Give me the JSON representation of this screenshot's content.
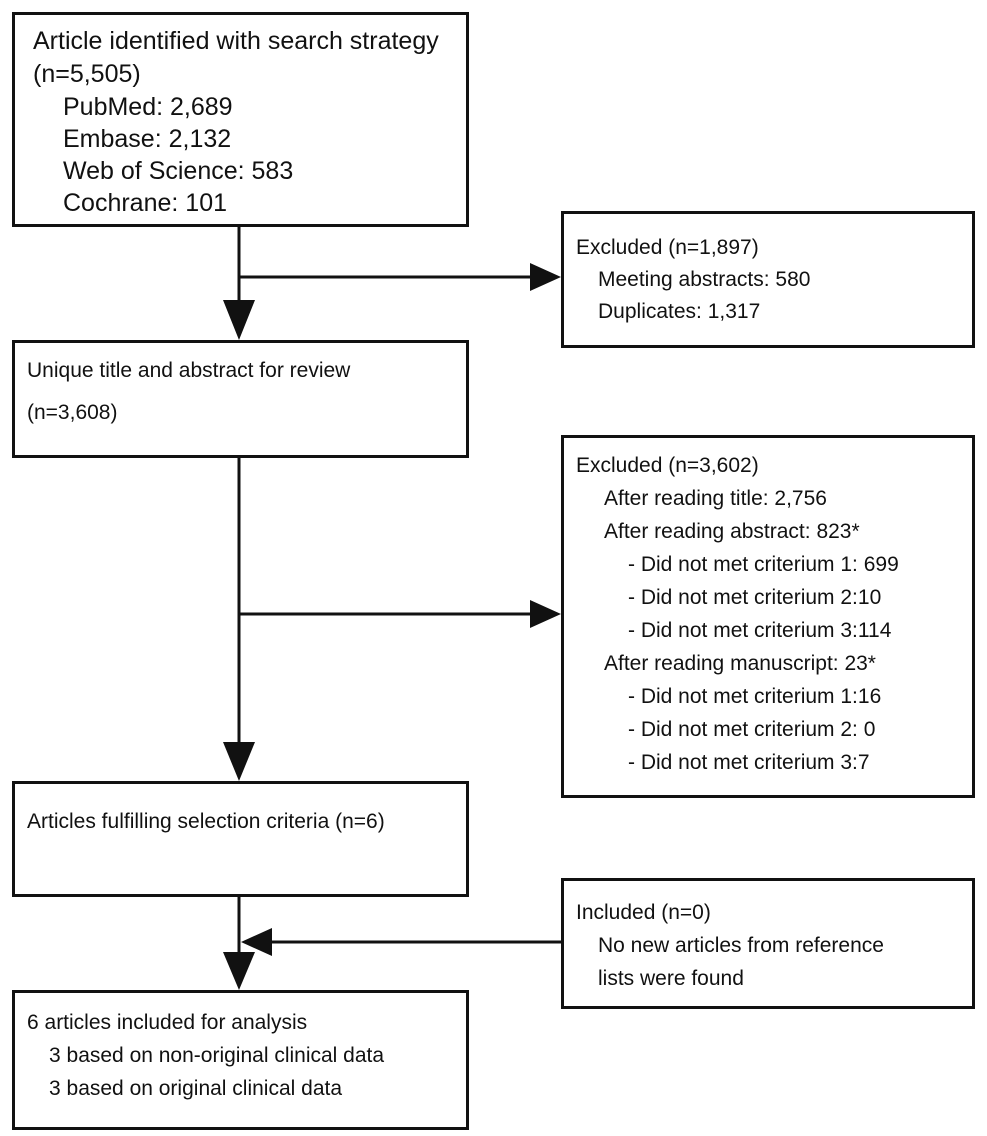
{
  "search_box": {
    "title": "Article identified with search strategy",
    "count": "(n=5,505)",
    "sources": [
      "PubMed: 2,689",
      "Embase: 2,132",
      "Web of Science: 583",
      "Cochrane: 101"
    ]
  },
  "excluded_first": {
    "title": "Excluded (n=1,897)",
    "items": [
      "Meeting abstracts: 580",
      "Duplicates:  1,317"
    ]
  },
  "unique_box": {
    "title": "Unique title and abstract for review",
    "count": "(n=3,608)"
  },
  "excluded_second": {
    "title": "Excluded (n=3,602)",
    "after_title": "After reading title:  2,756",
    "after_abstract": "After reading abstract: 823*",
    "abstract_criteria": [
      "- Did not met criterium 1: 699",
      "- Did not met criterium 2:10",
      "- Did not met criterium 3:114"
    ],
    "after_manuscript": "After reading manuscript: 23*",
    "manuscript_criteria": [
      "- Did not met criterium 1:16",
      "- Did not met criterium 2: 0",
      "- Did not met criterium 3:7"
    ]
  },
  "fulfilling_box": {
    "title": "Articles fulfilling selection criteria (n=6)"
  },
  "included_box": {
    "title": "Included (n=0)",
    "lines": [
      "No new articles from reference",
      "lists were found"
    ]
  },
  "final_box": {
    "title": "6 articles included for analysis",
    "lines": [
      "3 based on non-original clinical data",
      "3 based on original clinical data"
    ]
  },
  "colors": {
    "stroke": "#111111",
    "background": "#ffffff"
  }
}
